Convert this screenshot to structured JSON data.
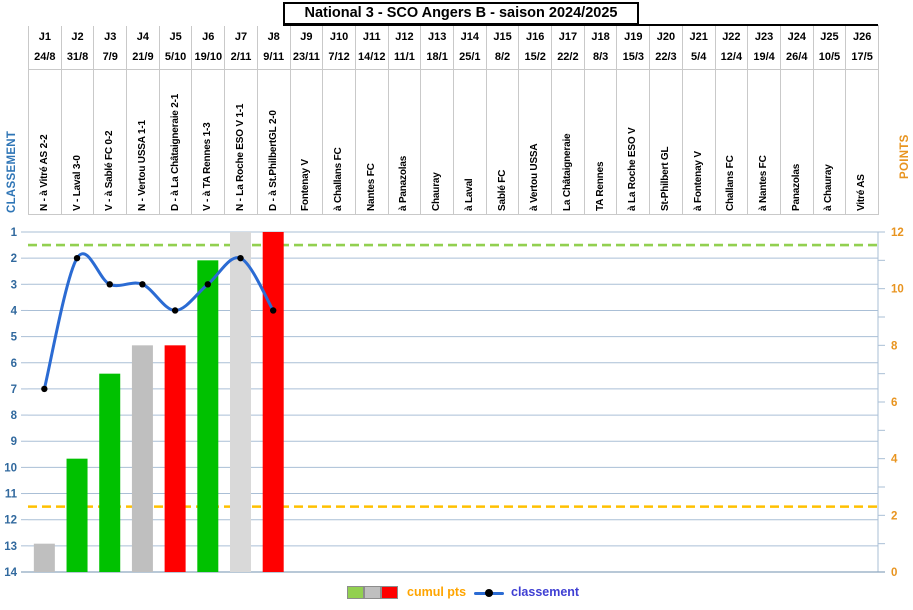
{
  "title": "National 3 - SCO Angers B - saison 2024/2025",
  "axes": {
    "left_title": "CLASSEMENT",
    "right_title": "POINTS",
    "left_ticks": [
      1,
      2,
      3,
      4,
      5,
      6,
      7,
      8,
      9,
      10,
      11,
      12,
      13,
      14
    ],
    "right_ticks": [
      12,
      10,
      8,
      6,
      4,
      2,
      0
    ]
  },
  "legend": {
    "bars_label": "cumul pts",
    "line_label": "classement",
    "swatch_colors": [
      "#92d050",
      "#bfbfbf",
      "#ff0000"
    ]
  },
  "colors": {
    "line": "#2b6bd3",
    "marker": "#000000",
    "gridline": "#aabfd6",
    "axis_bottom": "#8ea6bf",
    "left_axis_text": "#31699e",
    "left_axis_title": "#2e75b6",
    "right_axis_text": "#e8941f",
    "legend_bars_text": "#ffa500",
    "legend_line_text": "#3f3fd3",
    "ref_green": "#92d050",
    "ref_orange": "#ffc000",
    "win_bar": "#00c100",
    "draw_bar": "#bfbfbf",
    "loss_bar": "#ff0000"
  },
  "chart_data": {
    "type": "combo",
    "title": "National 3 - SCO Angers B - saison 2024/2025",
    "left_axis": {
      "label": "CLASSEMENT",
      "range": [
        1,
        14
      ],
      "inverted": true
    },
    "right_axis": {
      "label": "POINTS",
      "range": [
        0,
        12
      ]
    },
    "reference_lines": [
      {
        "axis": "classement",
        "value": 1.5,
        "color": "#92d050",
        "style": "dashed"
      },
      {
        "axis": "classement",
        "value": 11.5,
        "color": "#ffc000",
        "style": "dashed"
      }
    ],
    "series": [
      {
        "name": "cumul pts",
        "type": "bar",
        "axis": "points",
        "values": [
          1,
          4,
          7,
          8,
          8,
          11,
          12,
          12,
          null,
          null,
          null,
          null,
          null,
          null,
          null,
          null,
          null,
          null,
          null,
          null,
          null,
          null,
          null,
          null,
          null,
          null
        ]
      },
      {
        "name": "classement",
        "type": "line",
        "axis": "classement",
        "values": [
          7,
          2,
          3,
          3,
          4,
          3,
          2,
          4,
          null,
          null,
          null,
          null,
          null,
          null,
          null,
          null,
          null,
          null,
          null,
          null,
          null,
          null,
          null,
          null,
          null,
          null
        ]
      }
    ],
    "matchdays": [
      {
        "j": "J1",
        "date": "24/8",
        "label": "N - à Vitré AS 2-2",
        "result": "N",
        "cumul_pts": 1,
        "classement": 7,
        "bar_color": "#bfbfbf"
      },
      {
        "j": "J2",
        "date": "31/8",
        "label": "V - Laval 3-0",
        "result": "V",
        "cumul_pts": 4,
        "classement": 2,
        "bar_color": "#00c100"
      },
      {
        "j": "J3",
        "date": "7/9",
        "label": "V - à Sablé FC 0-2",
        "result": "V",
        "cumul_pts": 7,
        "classement": 3,
        "bar_color": "#00c100"
      },
      {
        "j": "J4",
        "date": "21/9",
        "label": "N - Vertou USSA 1-1",
        "result": "N",
        "cumul_pts": 8,
        "classement": 3,
        "bar_color": "#bfbfbf"
      },
      {
        "j": "J5",
        "date": "5/10",
        "label": "D - à La Châtaigneraie 2-1",
        "result": "D",
        "cumul_pts": 8,
        "classement": 4,
        "bar_color": "#ff0000"
      },
      {
        "j": "J6",
        "date": "19/10",
        "label": "V - à TA Rennes 1-3",
        "result": "V",
        "cumul_pts": 11,
        "classement": 3,
        "bar_color": "#00c100"
      },
      {
        "j": "J7",
        "date": "2/11",
        "label": "N - La Roche ESO V 1-1",
        "result": "N",
        "cumul_pts": 12,
        "classement": 2,
        "bar_color": "#d9d9d9"
      },
      {
        "j": "J8",
        "date": "9/11",
        "label": "D - à St.PhilbertGL 2-0",
        "result": "D",
        "cumul_pts": 12,
        "classement": 4,
        "bar_color": "#ff0000"
      },
      {
        "j": "J9",
        "date": "23/11",
        "label": "Fontenay V",
        "result": null,
        "cumul_pts": null,
        "classement": null,
        "bar_color": null
      },
      {
        "j": "J10",
        "date": "7/12",
        "label": "à Challans FC",
        "result": null,
        "cumul_pts": null,
        "classement": null,
        "bar_color": null
      },
      {
        "j": "J11",
        "date": "14/12",
        "label": "Nantes FC",
        "result": null,
        "cumul_pts": null,
        "classement": null,
        "bar_color": null
      },
      {
        "j": "J12",
        "date": "11/1",
        "label": "à Panazolas",
        "result": null,
        "cumul_pts": null,
        "classement": null,
        "bar_color": null
      },
      {
        "j": "J13",
        "date": "18/1",
        "label": "Chauray",
        "result": null,
        "cumul_pts": null,
        "classement": null,
        "bar_color": null
      },
      {
        "j": "J14",
        "date": "25/1",
        "label": "à Laval",
        "result": null,
        "cumul_pts": null,
        "classement": null,
        "bar_color": null
      },
      {
        "j": "J15",
        "date": "8/2",
        "label": "Sablé FC",
        "result": null,
        "cumul_pts": null,
        "classement": null,
        "bar_color": null
      },
      {
        "j": "J16",
        "date": "15/2",
        "label": "à Vertou USSA",
        "result": null,
        "cumul_pts": null,
        "classement": null,
        "bar_color": null
      },
      {
        "j": "J17",
        "date": "22/2",
        "label": "La Châtaigneraie",
        "result": null,
        "cumul_pts": null,
        "classement": null,
        "bar_color": null
      },
      {
        "j": "J18",
        "date": "8/3",
        "label": "TA Rennes",
        "result": null,
        "cumul_pts": null,
        "classement": null,
        "bar_color": null
      },
      {
        "j": "J19",
        "date": "15/3",
        "label": "à La Roche ESO V",
        "result": null,
        "cumul_pts": null,
        "classement": null,
        "bar_color": null
      },
      {
        "j": "J20",
        "date": "22/3",
        "label": "St-Philbert GL",
        "result": null,
        "cumul_pts": null,
        "classement": null,
        "bar_color": null
      },
      {
        "j": "J21",
        "date": "5/4",
        "label": "à Fontenay V",
        "result": null,
        "cumul_pts": null,
        "classement": null,
        "bar_color": null
      },
      {
        "j": "J22",
        "date": "12/4",
        "label": "Challans FC",
        "result": null,
        "cumul_pts": null,
        "classement": null,
        "bar_color": null
      },
      {
        "j": "J23",
        "date": "19/4",
        "label": "à Nantes FC",
        "result": null,
        "cumul_pts": null,
        "classement": null,
        "bar_color": null
      },
      {
        "j": "J24",
        "date": "26/4",
        "label": "Panazolas",
        "result": null,
        "cumul_pts": null,
        "classement": null,
        "bar_color": null
      },
      {
        "j": "J25",
        "date": "10/5",
        "label": "à Chauray",
        "result": null,
        "cumul_pts": null,
        "classement": null,
        "bar_color": null
      },
      {
        "j": "J26",
        "date": "17/5",
        "label": "Vitré AS",
        "result": null,
        "cumul_pts": null,
        "classement": null,
        "bar_color": null
      }
    ]
  }
}
